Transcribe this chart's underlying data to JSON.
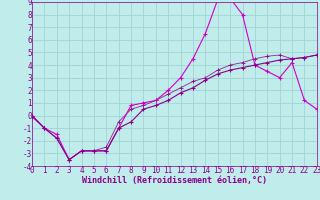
{
  "xlabel": "Windchill (Refroidissement éolien,°C)",
  "bg_color": "#c0ecec",
  "grid_color": "#a0d4d4",
  "line_color1": "#cc00cc",
  "line_color2": "#880088",
  "line_color3": "#cc44cc",
  "xlim": [
    0,
    23
  ],
  "ylim": [
    -4,
    9
  ],
  "xticks": [
    0,
    1,
    2,
    3,
    4,
    5,
    6,
    7,
    8,
    9,
    10,
    11,
    12,
    13,
    14,
    15,
    16,
    17,
    18,
    19,
    20,
    21,
    22,
    23
  ],
  "yticks": [
    -4,
    -3,
    -2,
    -1,
    0,
    1,
    2,
    3,
    4,
    5,
    6,
    7,
    8,
    9
  ],
  "curve1_x": [
    0,
    1,
    2,
    3,
    4,
    5,
    6,
    7,
    8,
    9,
    10,
    11,
    12,
    13,
    14,
    15,
    16,
    17,
    18,
    19,
    20,
    21,
    22,
    23
  ],
  "curve1_y": [
    0,
    -1,
    -1.5,
    -3.5,
    -2.8,
    -2.8,
    -2.8,
    -1.0,
    0.8,
    1.0,
    1.2,
    2.0,
    3.0,
    4.5,
    6.5,
    9.2,
    9.3,
    8.0,
    4.0,
    3.5,
    3.0,
    4.2,
    1.2,
    0.5
  ],
  "curve2_x": [
    0,
    1,
    2,
    3,
    4,
    5,
    6,
    7,
    8,
    9,
    10,
    11,
    12,
    13,
    14,
    15,
    16,
    17,
    18,
    19,
    20,
    21,
    22,
    23
  ],
  "curve2_y": [
    0,
    -1,
    -1.8,
    -3.5,
    -2.8,
    -2.8,
    -2.8,
    -1.0,
    -0.5,
    0.5,
    0.8,
    1.2,
    1.8,
    2.2,
    2.8,
    3.3,
    3.6,
    3.8,
    4.0,
    4.2,
    4.4,
    4.5,
    4.6,
    4.8
  ],
  "curve3_x": [
    0,
    1,
    2,
    3,
    4,
    5,
    6,
    7,
    8,
    9,
    10,
    11,
    12,
    13,
    14,
    15,
    16,
    17,
    18,
    19,
    20,
    21,
    22,
    23
  ],
  "curve3_y": [
    -0.1,
    -1.0,
    -1.8,
    -3.5,
    -2.8,
    -2.8,
    -2.5,
    -0.5,
    0.5,
    0.8,
    1.2,
    1.7,
    2.2,
    2.7,
    3.0,
    3.6,
    4.0,
    4.2,
    4.5,
    4.7,
    4.8,
    4.5,
    4.6,
    4.8
  ]
}
